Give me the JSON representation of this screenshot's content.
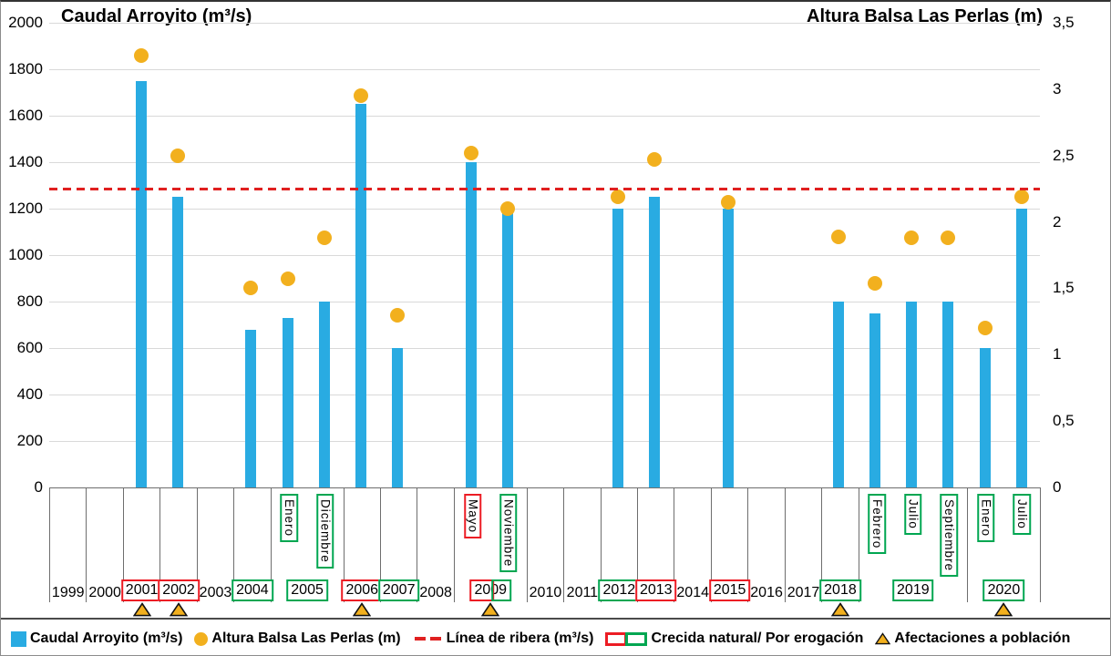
{
  "titles": {
    "left_axis": "Caudal Arroyito (m³/s)",
    "right_axis": "Altura Balsa Las Perlas (m)"
  },
  "colors": {
    "bar_blue": "#29ABE2",
    "dot_gold": "#F2B01E",
    "line_red": "#E02020",
    "box_red": "#EC1C24",
    "box_green": "#00A651",
    "gridline": "#D9D9D9",
    "axis_gray": "#6E6E6E"
  },
  "chart_data": {
    "type": "combo-bar-scatter",
    "y_left": {
      "title": "Caudal Arroyito (m³/s)",
      "min": 0,
      "max": 2000,
      "step": 200,
      "ticks": [
        2000,
        1800,
        1600,
        1400,
        1200,
        1000,
        800,
        600,
        400,
        200,
        0
      ]
    },
    "y_right": {
      "title": "Altura Balsa Las Perlas (m)",
      "min": 0,
      "max": 3.5,
      "step": 0.5,
      "ticks": [
        {
          "value": 3.5,
          "label": "3,5"
        },
        {
          "value": 3,
          "label": "3"
        },
        {
          "value": 2.5,
          "label": "2,5"
        },
        {
          "value": 2,
          "label": "2"
        },
        {
          "value": 1.5,
          "label": "1,5"
        },
        {
          "value": 1,
          "label": "1"
        },
        {
          "value": 0.5,
          "label": "0,5"
        },
        {
          "value": 0,
          "label": "0"
        }
      ]
    },
    "reference_line": {
      "label": "Línea de ribera (m³/s)",
      "value": 1285
    },
    "years": [
      {
        "label": "1999",
        "span": 1,
        "box": null,
        "triangle": false,
        "bars": []
      },
      {
        "label": "2000",
        "span": 1,
        "box": null,
        "triangle": false,
        "bars": []
      },
      {
        "label": "2001",
        "span": 1,
        "box": "red",
        "triangle": true,
        "bars": [
          {
            "month": null,
            "month_box": null,
            "caudal": 1750,
            "altura": 3.25
          }
        ]
      },
      {
        "label": "2002",
        "span": 1,
        "box": "red",
        "triangle": true,
        "bars": [
          {
            "month": null,
            "month_box": null,
            "caudal": 1250,
            "altura": 2.5
          }
        ]
      },
      {
        "label": "2003",
        "span": 1,
        "box": null,
        "triangle": false,
        "bars": []
      },
      {
        "label": "2004",
        "span": 1,
        "box": "green",
        "triangle": false,
        "bars": [
          {
            "month": null,
            "month_box": null,
            "caudal": 680,
            "altura": 1.5
          }
        ]
      },
      {
        "label": "2005",
        "span": 2,
        "box": "green",
        "triangle": false,
        "bars": [
          {
            "month": "Enero",
            "month_box": "green",
            "caudal": 730,
            "altura": 1.57
          },
          {
            "month": "Diciembre",
            "month_box": "green",
            "caudal": 800,
            "altura": 1.88
          }
        ]
      },
      {
        "label": "2006",
        "span": 1,
        "box": "red",
        "triangle": true,
        "bars": [
          {
            "month": null,
            "month_box": null,
            "caudal": 1650,
            "altura": 2.95
          }
        ]
      },
      {
        "label": "2007",
        "span": 1,
        "box": "green",
        "triangle": false,
        "bars": [
          {
            "month": null,
            "month_box": null,
            "caudal": 600,
            "altura": 1.3
          }
        ]
      },
      {
        "label": "2008",
        "span": 1,
        "box": null,
        "triangle": false,
        "bars": []
      },
      {
        "label": "2009",
        "span": 2,
        "box": "red-green",
        "triangle": true,
        "bars": [
          {
            "month": "Mayo",
            "month_box": "red",
            "caudal": 1400,
            "altura": 2.52
          },
          {
            "month": "Noviembre",
            "month_box": "green",
            "caudal": 1200,
            "altura": 2.1
          }
        ]
      },
      {
        "label": "2010",
        "span": 1,
        "box": null,
        "triangle": false,
        "bars": []
      },
      {
        "label": "2011",
        "span": 1,
        "box": null,
        "triangle": false,
        "bars": []
      },
      {
        "label": "2012",
        "span": 1,
        "box": "green",
        "triangle": false,
        "bars": [
          {
            "month": null,
            "month_box": null,
            "caudal": 1200,
            "altura": 2.19
          }
        ]
      },
      {
        "label": "2013",
        "span": 1,
        "box": "red",
        "triangle": false,
        "bars": [
          {
            "month": null,
            "month_box": null,
            "caudal": 1250,
            "altura": 2.47
          }
        ]
      },
      {
        "label": "2014",
        "span": 1,
        "box": null,
        "triangle": false,
        "bars": []
      },
      {
        "label": "2015",
        "span": 1,
        "box": "red",
        "triangle": false,
        "bars": [
          {
            "month": null,
            "month_box": null,
            "caudal": 1200,
            "altura": 2.15
          }
        ]
      },
      {
        "label": "2016",
        "span": 1,
        "box": null,
        "triangle": false,
        "bars": []
      },
      {
        "label": "2017",
        "span": 1,
        "box": null,
        "triangle": false,
        "bars": []
      },
      {
        "label": "2018",
        "span": 1,
        "box": "green",
        "triangle": true,
        "bars": [
          {
            "month": null,
            "month_box": null,
            "caudal": 800,
            "altura": 1.89
          }
        ]
      },
      {
        "label": "2019",
        "span": 3,
        "box": "green",
        "triangle": false,
        "bars": [
          {
            "month": "Febrero",
            "month_box": "green",
            "caudal": 750,
            "altura": 1.54
          },
          {
            "month": "Julio",
            "month_box": "green",
            "caudal": 800,
            "altura": 1.88
          },
          {
            "month": "Septiembre",
            "month_box": "green",
            "caudal": 800,
            "altura": 1.88
          }
        ]
      },
      {
        "label": "2020",
        "span": 2,
        "box": "green",
        "triangle": true,
        "bars": [
          {
            "month": "Enero",
            "month_box": "green",
            "caudal": 600,
            "altura": 1.2
          },
          {
            "month": "Julio",
            "month_box": "green",
            "caudal": 1200,
            "altura": 2.19
          }
        ]
      }
    ]
  },
  "legend": {
    "items": [
      {
        "swatch": "bar",
        "label": "Caudal Arroyito (m³/s)"
      },
      {
        "swatch": "dot",
        "label": "Altura Balsa Las Perlas (m)"
      },
      {
        "swatch": "dash",
        "label": "Línea de ribera (m³/s)"
      },
      {
        "swatch": "box-red-green",
        "label": "Crecida natural/ Por erogación"
      },
      {
        "swatch": "triangle",
        "label": "Afectaciones a población"
      }
    ]
  }
}
